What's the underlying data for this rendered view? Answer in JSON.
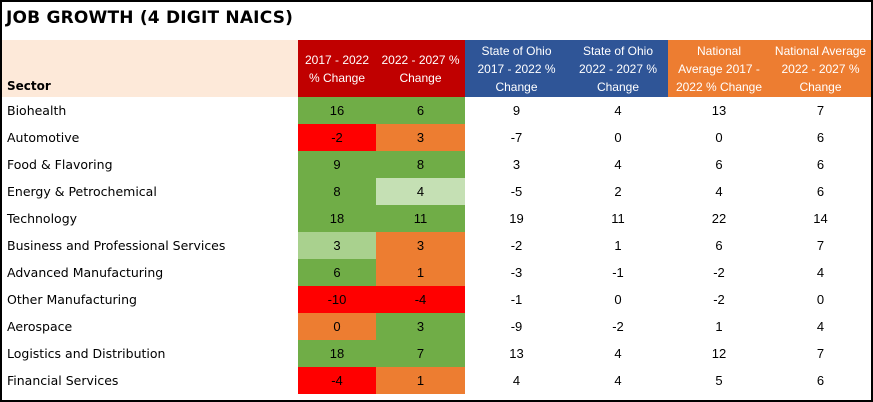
{
  "title": "JOB GROWTH (4 DIGIT NAICS)",
  "headers": {
    "sector": "Sector",
    "c1": [
      "2017 - 2022",
      "% Change"
    ],
    "c2": [
      "2022 - 2027 %",
      "Change"
    ],
    "c3": [
      "State of Ohio",
      "2017 - 2022 %",
      "Change"
    ],
    "c4": [
      "State of Ohio",
      "2022 - 2027 %",
      "Change"
    ],
    "c5": [
      "National",
      "Average 2017 -",
      "2022 % Change"
    ],
    "c6": [
      "National Average",
      "2022 - 2027 %",
      "Change"
    ]
  },
  "colors": {
    "green": "#70ad47",
    "light_green": "#c5e0b4",
    "mid_green": "#a9d18e",
    "orange": "#ed7d31",
    "red": "#ff0000",
    "header_red": "#c00000",
    "header_blue": "#2f5597",
    "header_orange": "#ed7d31",
    "sector_header_bg": "#fde9d9"
  },
  "rows": [
    {
      "sector": "Biohealth",
      "v1": "16",
      "v2": "6",
      "v3": "9",
      "v4": "4",
      "v5": "13",
      "v6": "7",
      "c1": "green",
      "c2": "green"
    },
    {
      "sector": "Automotive",
      "v1": "-2",
      "v2": "3",
      "v3": "-7",
      "v4": "0",
      "v5": "0",
      "v6": "6",
      "c1": "red",
      "c2": "orange"
    },
    {
      "sector": "Food & Flavoring",
      "v1": "9",
      "v2": "8",
      "v3": "3",
      "v4": "4",
      "v5": "6",
      "v6": "6",
      "c1": "green",
      "c2": "green"
    },
    {
      "sector": "Energy & Petrochemical",
      "v1": "8",
      "v2": "4",
      "v3": "-5",
      "v4": "2",
      "v5": "4",
      "v6": "6",
      "c1": "green",
      "c2": "light_green"
    },
    {
      "sector": "Technology",
      "v1": "18",
      "v2": "11",
      "v3": "19",
      "v4": "11",
      "v5": "22",
      "v6": "14",
      "c1": "green",
      "c2": "green"
    },
    {
      "sector": "Business and Professional Services",
      "v1": "3",
      "v2": "3",
      "v3": "-2",
      "v4": "1",
      "v5": "6",
      "v6": "7",
      "c1": "mid_green",
      "c2": "orange"
    },
    {
      "sector": "Advanced Manufacturing",
      "v1": "6",
      "v2": "1",
      "v3": "-3",
      "v4": "-1",
      "v5": "-2",
      "v6": "4",
      "c1": "green",
      "c2": "orange"
    },
    {
      "sector": "Other Manufacturing",
      "v1": "-10",
      "v2": "-4",
      "v3": "-1",
      "v4": "0",
      "v5": "-2",
      "v6": "0",
      "c1": "red",
      "c2": "red"
    },
    {
      "sector": "Aerospace",
      "v1": "0",
      "v2": "3",
      "v3": "-9",
      "v4": "-2",
      "v5": "1",
      "v6": "4",
      "c1": "orange",
      "c2": "green"
    },
    {
      "sector": "Logistics and Distribution",
      "v1": "18",
      "v2": "7",
      "v3": "13",
      "v4": "4",
      "v5": "12",
      "v6": "7",
      "c1": "green",
      "c2": "green"
    },
    {
      "sector": "Financial Services",
      "v1": "-4",
      "v2": "1",
      "v3": "4",
      "v4": "4",
      "v5": "5",
      "v6": "6",
      "c1": "red",
      "c2": "orange"
    }
  ]
}
